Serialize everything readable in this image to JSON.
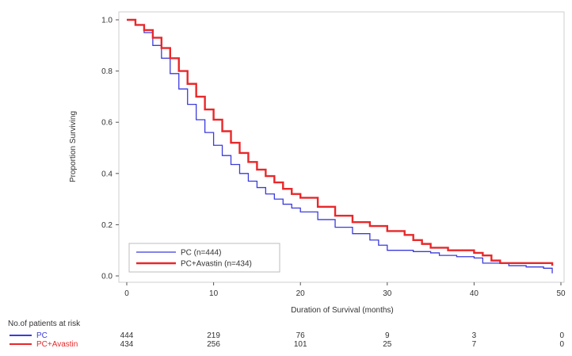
{
  "chart_data": {
    "type": "line",
    "title": "",
    "xlabel": "Duration of Survival (months)",
    "ylabel": "Proportion Surviving",
    "xlim": [
      0,
      50
    ],
    "ylim": [
      0,
      1
    ],
    "x_ticks": [
      0,
      10,
      20,
      30,
      40,
      50
    ],
    "y_ticks": [
      0.0,
      0.2,
      0.4,
      0.6,
      0.8,
      1.0
    ],
    "x_tick_labels": [
      "0",
      "10",
      "20",
      "30",
      "40",
      "50"
    ],
    "y_tick_labels": [
      "0.0",
      "0.2",
      "0.4",
      "0.6",
      "0.8",
      "1.0"
    ],
    "grid": false,
    "step": true,
    "legend_position": "bottom-left",
    "series": [
      {
        "name": "PC (n=444)",
        "color": "#3b3bdc",
        "x": [
          0,
          1,
          2,
          3,
          4,
          5,
          6,
          7,
          8,
          9,
          10,
          11,
          12,
          13,
          14,
          15,
          16,
          17,
          18,
          19,
          20,
          22,
          24,
          26,
          28,
          29,
          30,
          33,
          35,
          36,
          38,
          40,
          41,
          44,
          46,
          48,
          49
        ],
        "y": [
          1.0,
          0.98,
          0.95,
          0.9,
          0.85,
          0.79,
          0.73,
          0.67,
          0.61,
          0.56,
          0.51,
          0.47,
          0.435,
          0.4,
          0.37,
          0.345,
          0.32,
          0.3,
          0.28,
          0.265,
          0.25,
          0.22,
          0.19,
          0.165,
          0.14,
          0.12,
          0.1,
          0.095,
          0.09,
          0.08,
          0.075,
          0.07,
          0.05,
          0.04,
          0.035,
          0.03,
          0.01
        ]
      },
      {
        "name": "PC+Avastin (n=434)",
        "color": "#e8282a",
        "x": [
          0,
          1,
          2,
          3,
          4,
          5,
          6,
          7,
          8,
          9,
          10,
          11,
          12,
          13,
          14,
          15,
          16,
          17,
          18,
          19,
          20,
          22,
          24,
          26,
          28,
          30,
          32,
          33,
          34,
          35,
          37,
          39,
          40,
          41,
          42,
          43,
          45,
          47,
          49
        ],
        "y": [
          1.0,
          0.98,
          0.96,
          0.93,
          0.89,
          0.85,
          0.8,
          0.75,
          0.7,
          0.65,
          0.61,
          0.565,
          0.52,
          0.48,
          0.445,
          0.415,
          0.39,
          0.365,
          0.34,
          0.32,
          0.305,
          0.27,
          0.235,
          0.21,
          0.195,
          0.175,
          0.16,
          0.14,
          0.125,
          0.11,
          0.1,
          0.1,
          0.09,
          0.08,
          0.06,
          0.05,
          0.05,
          0.05,
          0.04
        ]
      }
    ],
    "risk_table": {
      "title": "No.of patients at risk",
      "time_points": [
        0,
        10,
        20,
        30,
        40,
        50
      ],
      "rows": [
        {
          "label": "PC",
          "color": "#3b3bdc",
          "values": [
            "444",
            "219",
            "76",
            "9",
            "3",
            "0"
          ]
        },
        {
          "label": "PC+Avastin",
          "color": "#e8282a",
          "values": [
            "434",
            "256",
            "101",
            "25",
            "7",
            "0"
          ]
        }
      ]
    }
  }
}
